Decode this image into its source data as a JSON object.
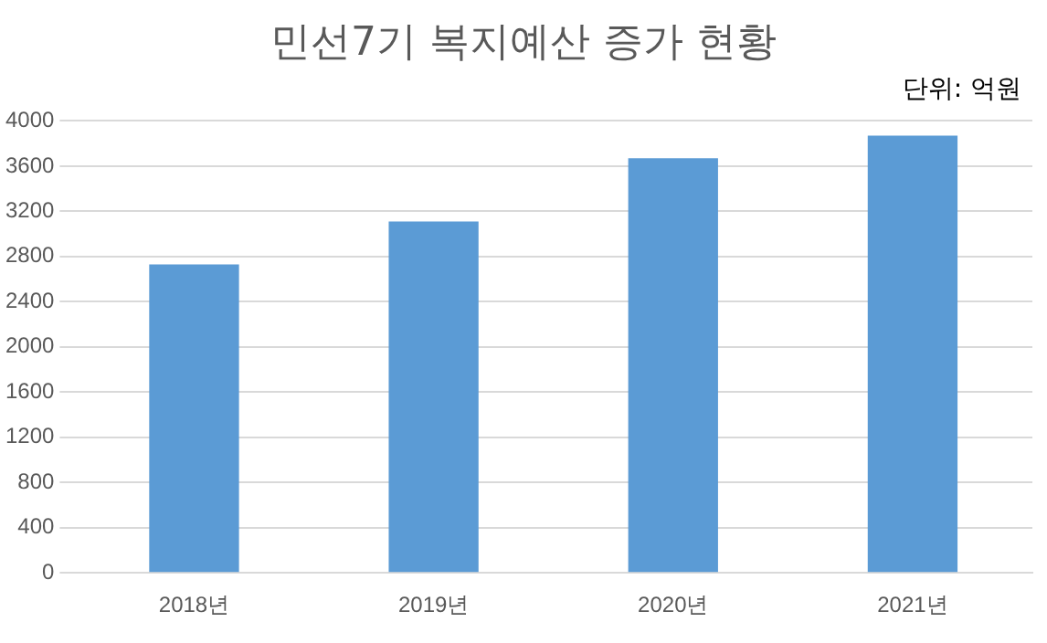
{
  "chart_data": {
    "type": "bar",
    "title": "민선7기 복지예산 증가 현황",
    "annotations": [
      "단위: 억원"
    ],
    "categories": [
      "2018년",
      "2019년",
      "2020년",
      "2021년"
    ],
    "values": [
      2730,
      3110,
      3670,
      3870
    ],
    "color": "#5b9bd5",
    "ylim": [
      0,
      4000
    ],
    "yticks": [
      0,
      400,
      800,
      1200,
      1600,
      2000,
      2400,
      2800,
      3200,
      3600,
      4000
    ],
    "grid": "y",
    "legend": false
  }
}
